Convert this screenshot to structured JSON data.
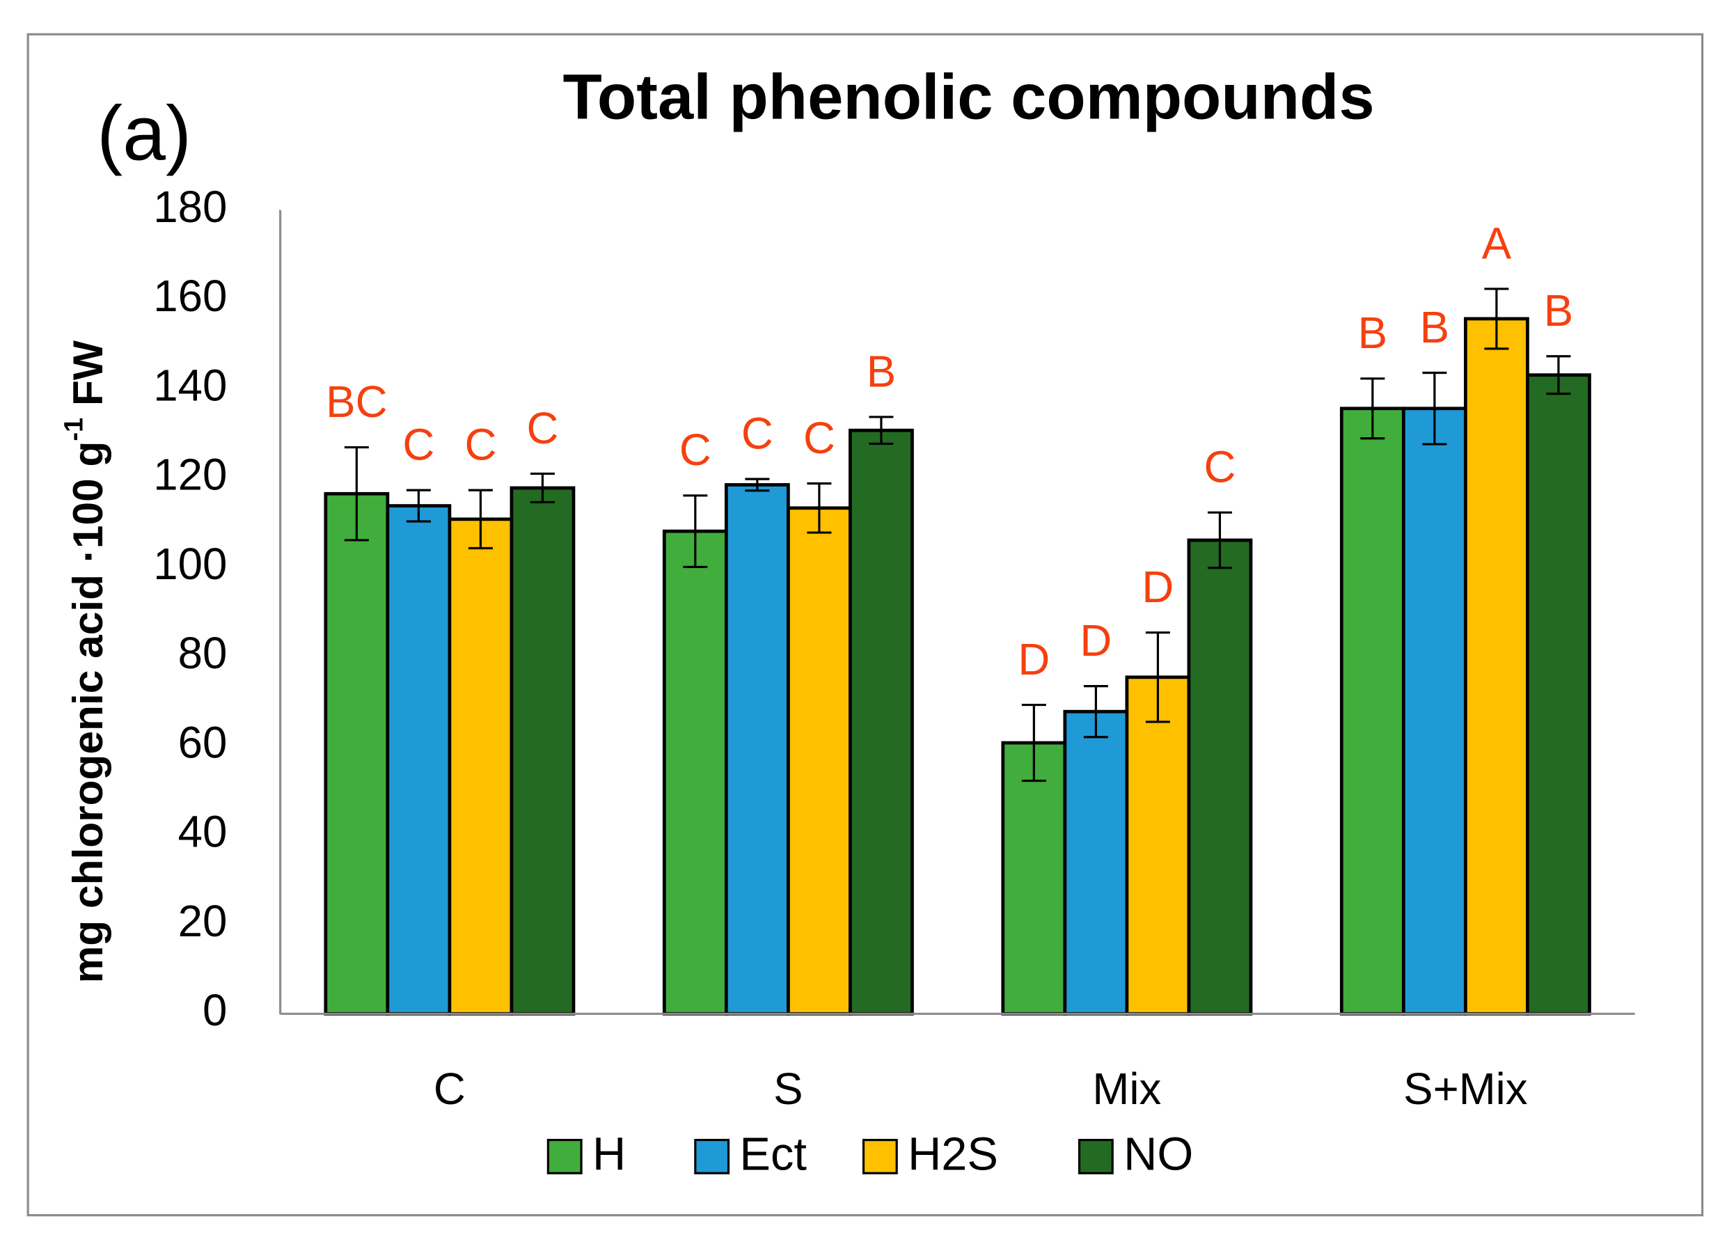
{
  "chart_data": {
    "type": "bar",
    "panel_label": "(a)",
    "title": "Total phenolic compounds",
    "y_label_parts": [
      "mg chlorogenic acid ·100 g",
      "-1",
      " FW"
    ],
    "categories": [
      "C",
      "S",
      "Mix",
      "S+Mix"
    ],
    "series": [
      {
        "name": "H",
        "color": "#41ad3c",
        "values": [
          116.5,
          108.1,
          60.7,
          135.6
        ],
        "errors": [
          10.4,
          8,
          8.5,
          6.7
        ],
        "letters": [
          "BC",
          "C",
          "D",
          "B"
        ]
      },
      {
        "name": "Ect",
        "color": "#1f9ad6",
        "values": [
          113.8,
          118.5,
          67.7,
          135.6
        ],
        "errors": [
          3.5,
          1.3,
          5.7,
          8
        ],
        "letters": [
          "C",
          "C",
          "D",
          "B"
        ]
      },
      {
        "name": "H2S",
        "color": "#ffc000",
        "values": [
          110.8,
          113.3,
          75.4,
          155.7
        ],
        "errors": [
          6.5,
          5.5,
          10,
          6.7
        ],
        "letters": [
          "C",
          "C",
          "D",
          "A"
        ]
      },
      {
        "name": "NO",
        "color": "#236b22",
        "values": [
          117.8,
          130.7,
          106.1,
          143.1
        ],
        "errors": [
          3.2,
          3,
          6.2,
          4.2
        ],
        "letters": [
          "C",
          "B",
          "C",
          "B"
        ]
      }
    ],
    "ylim": [
      0,
      180
    ],
    "yticks": [
      0,
      20,
      40,
      60,
      80,
      100,
      120,
      140,
      160,
      180
    ],
    "grid": false,
    "letter_color": "#f5400f",
    "legend": "bottom"
  }
}
